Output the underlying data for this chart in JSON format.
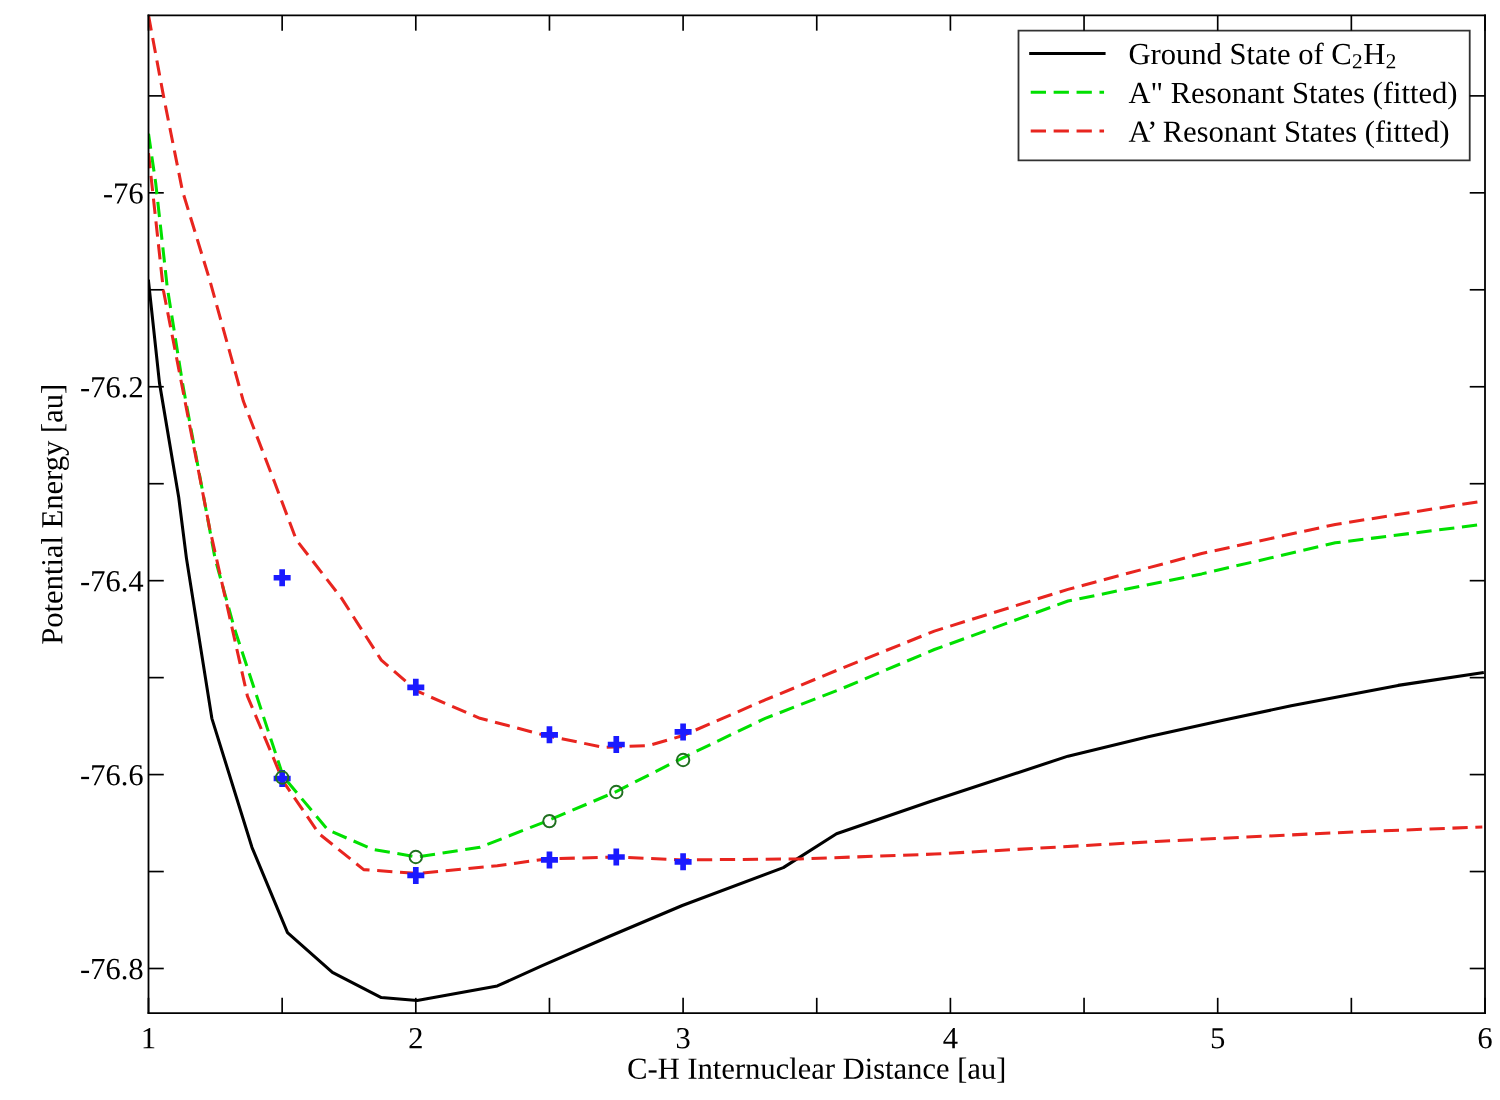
{
  "chart_data": {
    "type": "line",
    "xlabel": "C-H Internuclear Distance [au]",
    "ylabel": "Potential Energy [au]",
    "xlim": [
      1,
      6
    ],
    "ylim": [
      -76.846,
      -75.817
    ],
    "xticks": [
      1,
      {
        "value": 1.5,
        "label": null
      },
      2,
      {
        "value": 2.5,
        "label": null
      },
      3,
      {
        "value": 3.5,
        "label": null
      },
      4,
      {
        "value": 4.5,
        "label": null
      },
      5,
      {
        "value": 5.5,
        "label": null
      },
      6
    ],
    "yticks": [
      {
        "value": -76.8,
        "label": "-76.8"
      },
      {
        "value": -76.7,
        "label": null
      },
      {
        "value": -76.6,
        "label": "-76.6"
      },
      {
        "value": -76.5,
        "label": null
      },
      {
        "value": -76.4,
        "label": "-76.4"
      },
      {
        "value": -76.3,
        "label": null
      },
      {
        "value": -76.2,
        "label": "-76.2"
      },
      {
        "value": -76.1,
        "label": null
      },
      {
        "value": -76.0,
        "label": "-76"
      },
      {
        "value": -75.9,
        "label": null
      }
    ],
    "grid": false,
    "legend": "top right",
    "series": [
      {
        "name": "Ground State of C$_{2}$H$_{2}$",
        "color": "#000000",
        "line_style": "solid",
        "marker": "none",
        "x": [
          1.0,
          1.041,
          1.113,
          1.142,
          1.237,
          1.387,
          1.52,
          1.688,
          1.871,
          2.005,
          2.305,
          2.473,
          2.723,
          2.997,
          3.375,
          3.574,
          3.922,
          4.44,
          4.74,
          5.02,
          5.275,
          5.675,
          5.99
        ],
        "values": [
          -76.091,
          -76.196,
          -76.314,
          -76.377,
          -76.542,
          -76.675,
          -76.763,
          -76.804,
          -76.83,
          -76.833,
          -76.818,
          -76.797,
          -76.767,
          -76.735,
          -76.696,
          -76.661,
          -76.628,
          -76.581,
          -76.561,
          -76.544,
          -76.529,
          -76.508,
          -76.495
        ]
      },
      {
        "name": "A\" Resonant States (fitted)",
        "color": "#00e000",
        "line_style": "dashed",
        "marker": "none",
        "x": [
          1.0,
          1.027,
          1.07,
          1.127,
          1.249,
          1.321,
          1.504,
          1.671,
          1.838,
          2.005,
          2.24,
          2.49,
          2.746,
          2.997,
          3.307,
          3.588,
          3.94,
          4.44,
          4.94,
          5.44,
          5.99
        ],
        "values": [
          -75.939,
          -75.99,
          -76.097,
          -76.196,
          -76.377,
          -76.449,
          -76.602,
          -76.657,
          -76.677,
          -76.685,
          -76.675,
          -76.648,
          -76.618,
          -76.583,
          -76.542,
          -76.512,
          -76.471,
          -76.421,
          -76.393,
          -76.361,
          -76.342
        ]
      },
      {
        "name": "A’ Resonant States (fitted)",
        "color": "#e8251f",
        "line_style": "dashed",
        "marker": "none",
        "x": [
          1.0,
          1.056,
          1.127,
          1.228,
          1.355,
          1.471,
          1.553,
          1.722,
          1.871,
          2.005,
          2.24,
          2.49,
          2.705,
          2.873,
          2.997,
          3.307,
          3.588,
          3.94,
          4.44,
          4.94,
          5.44,
          5.99
        ],
        "values": [
          -75.817,
          -75.9,
          -75.998,
          -76.089,
          -76.215,
          -76.298,
          -76.358,
          -76.418,
          -76.482,
          -76.514,
          -76.542,
          -76.56,
          -76.572,
          -76.57,
          -76.56,
          -76.523,
          -76.491,
          -76.452,
          -76.409,
          -76.372,
          -76.342,
          -76.318
        ]
      },
      {
        "color": "#e8251f",
        "line_style": "dashed",
        "marker": "none",
        "x": [
          1.0,
          1.056,
          1.112,
          1.228,
          1.37,
          1.504,
          1.638,
          1.805,
          2.005,
          2.305,
          2.49,
          2.746,
          2.997,
          3.438,
          3.94,
          4.77,
          5.44,
          5.99
        ],
        "values": [
          -75.959,
          -76.101,
          -76.18,
          -76.345,
          -76.519,
          -76.607,
          -76.661,
          -76.698,
          -76.702,
          -76.694,
          -76.687,
          -76.685,
          -76.688,
          -76.687,
          -76.682,
          -76.669,
          -76.66,
          -76.654
        ]
      },
      {
        "type": "scatter",
        "color": "#1a1aff",
        "marker": "cross",
        "x": [
          1.5,
          2.0,
          2.5,
          2.75,
          3.0,
          1.5,
          2.0,
          2.5,
          2.75,
          3.0
        ],
        "values": [
          -76.397,
          -76.51,
          -76.559,
          -76.569,
          -76.556,
          -76.604,
          -76.704,
          -76.688,
          -76.685,
          -76.69
        ]
      },
      {
        "type": "scatter",
        "color": "#207020",
        "marker": "circle",
        "x": [
          1.5,
          2.0,
          2.5,
          2.75,
          3.0
        ],
        "values": [
          -76.603,
          -76.685,
          -76.648,
          -76.618,
          -76.585
        ]
      }
    ]
  }
}
